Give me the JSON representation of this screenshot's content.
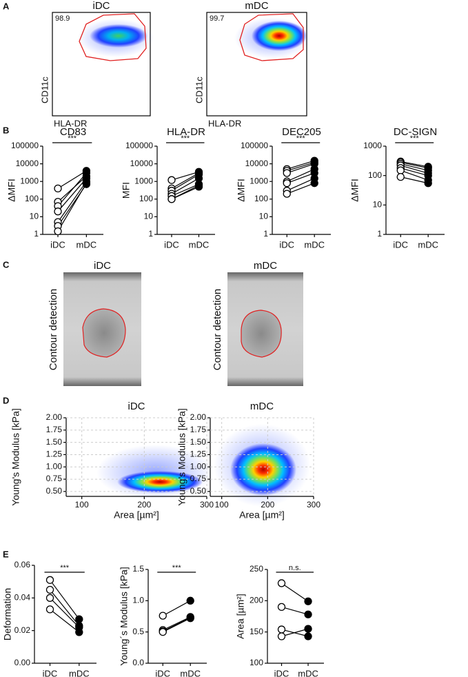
{
  "panels": [
    "A",
    "B",
    "C",
    "D",
    "E"
  ],
  "flow_plots": [
    {
      "title": "iDC",
      "gate": 98.9,
      "xlabel": "HLA-DR",
      "ylabel": "CD11c"
    },
    {
      "title": "mDC",
      "gate": 99.7,
      "xlabel": "HLA-DR",
      "ylabel": "CD11c"
    }
  ],
  "images": [
    {
      "title": "iDC",
      "label": "Contour detection"
    },
    {
      "title": "mDC",
      "label": "Contour detection"
    }
  ],
  "chart_data": [
    {
      "type": "paired",
      "title": "CD83",
      "ylabel": "ΔMFI",
      "log_y": true,
      "categories": [
        "iDC",
        "mDC"
      ],
      "colors": [
        "#ffffff",
        "#000000"
      ],
      "significance": "***",
      "ylim": [
        1,
        100000
      ],
      "yticks": [
        1,
        10,
        100,
        1000,
        10000,
        100000
      ],
      "series": [
        {
          "values": [
            400,
            4000
          ]
        },
        {
          "values": [
            70,
            2000
          ]
        },
        {
          "values": [
            40,
            3000
          ]
        },
        {
          "values": [
            20,
            1500
          ]
        },
        {
          "values": [
            5,
            1000
          ]
        },
        {
          "values": [
            3,
            700
          ]
        },
        {
          "values": [
            1.5,
            800
          ]
        }
      ]
    },
    {
      "type": "paired",
      "title": "HLA-DR",
      "ylabel": "MFI",
      "log_y": true,
      "categories": [
        "iDC",
        "mDC"
      ],
      "colors": [
        "#ffffff",
        "#000000"
      ],
      "significance": "***",
      "ylim": [
        1,
        100000
      ],
      "yticks": [
        1,
        10,
        100,
        1000,
        10000,
        100000
      ],
      "series": [
        {
          "values": [
            1200,
            3500
          ]
        },
        {
          "values": [
            400,
            3000
          ]
        },
        {
          "values": [
            300,
            2500
          ]
        },
        {
          "values": [
            200,
            1500
          ]
        },
        {
          "values": [
            150,
            700
          ]
        },
        {
          "values": [
            100,
            600
          ]
        },
        {
          "values": [
            100,
            500
          ]
        }
      ]
    },
    {
      "type": "paired",
      "title": "DEC205",
      "ylabel": "ΔMFI",
      "log_y": true,
      "categories": [
        "iDC",
        "mDC"
      ],
      "colors": [
        "#ffffff",
        "#000000"
      ],
      "significance": "***",
      "ylim": [
        1,
        100000
      ],
      "yticks": [
        1,
        10,
        100,
        1000,
        10000,
        100000
      ],
      "series": [
        {
          "values": [
            5000,
            15000
          ]
        },
        {
          "values": [
            4000,
            12000
          ]
        },
        {
          "values": [
            3000,
            10000
          ]
        },
        {
          "values": [
            1000,
            5000
          ]
        },
        {
          "values": [
            800,
            3000
          ]
        },
        {
          "values": [
            300,
            1500
          ]
        },
        {
          "values": [
            200,
            800
          ]
        }
      ]
    },
    {
      "type": "paired",
      "title": "DC-SIGN",
      "ylabel": "ΔMFI",
      "log_y": true,
      "categories": [
        "iDC",
        "mDC"
      ],
      "colors": [
        "#ffffff",
        "#000000"
      ],
      "significance": "***",
      "ylim": [
        1,
        1000
      ],
      "yticks": [
        1,
        10,
        100,
        1000
      ],
      "series": [
        {
          "values": [
            300,
            200
          ]
        },
        {
          "values": [
            280,
            180
          ]
        },
        {
          "values": [
            250,
            150
          ]
        },
        {
          "values": [
            220,
            120
          ]
        },
        {
          "values": [
            180,
            100
          ]
        },
        {
          "values": [
            150,
            70
          ]
        },
        {
          "values": [
            90,
            55
          ]
        }
      ]
    },
    {
      "type": "density",
      "title": "iDC",
      "xlabel": "Area [µm²]",
      "ylabel": "Young's Modulus [kPa]",
      "grid": true,
      "xlim": [
        75,
        300
      ],
      "xticks": [
        100,
        200,
        300
      ],
      "ylim": [
        0.4,
        2.0
      ],
      "yticks": [
        {
          "value": 0.5,
          "label": "0.50"
        },
        0.75,
        {
          "value": 1,
          "label": "1.00"
        },
        1.25,
        {
          "value": 1.5,
          "label": "1.50"
        },
        1.75,
        {
          "value": 2,
          "label": "2.00"
        }
      ]
    },
    {
      "type": "density",
      "title": "mDC",
      "xlabel": "Area [µm²]",
      "ylabel": "Young's Modulus [kPa]",
      "grid": true,
      "xlim": [
        75,
        300
      ],
      "xticks": [
        100,
        200,
        300
      ],
      "ylim": [
        0.4,
        2.0
      ],
      "yticks": [
        {
          "value": 0.5,
          "label": "0.50"
        },
        0.75,
        {
          "value": 1,
          "label": "1.00"
        },
        1.25,
        {
          "value": 1.5,
          "label": "1.50"
        },
        1.75,
        {
          "value": 2,
          "label": "2.00"
        }
      ]
    },
    {
      "type": "paired",
      "ylabel": "Deformation",
      "log_y": false,
      "categories": [
        "iDC",
        "mDC"
      ],
      "colors": [
        "#ffffff",
        "#000000"
      ],
      "significance": "***",
      "ylim": [
        0,
        0.06
      ],
      "yticks": [
        {
          "value": 0,
          "label": "0.00"
        },
        0.02,
        0.04,
        0.06
      ],
      "series": [
        {
          "values": [
            0.051,
            0.027
          ]
        },
        {
          "values": [
            0.045,
            0.023
          ]
        },
        {
          "values": [
            0.04,
            0.022
          ]
        },
        {
          "values": [
            0.033,
            0.019
          ]
        }
      ]
    },
    {
      "type": "paired",
      "ylabel": "Young´s Modulus [kPa]",
      "log_y": false,
      "categories": [
        "iDC",
        "mDC"
      ],
      "colors": [
        "#ffffff",
        "#000000"
      ],
      "significance": "***",
      "ylim": [
        0,
        1.5
      ],
      "yticks": [
        {
          "value": 0,
          "label": "0.0"
        },
        0.5,
        {
          "value": 1,
          "label": "1.0"
        },
        1.5
      ],
      "series": [
        {
          "values": [
            0.76,
            1.0
          ]
        },
        {
          "values": [
            0.53,
            0.74
          ]
        },
        {
          "values": [
            0.51,
            0.73
          ]
        },
        {
          "values": [
            0.5,
            0.72
          ]
        }
      ]
    },
    {
      "type": "paired",
      "ylabel": "Area [µm²]",
      "log_y": false,
      "categories": [
        "iDC",
        "mDC"
      ],
      "colors": [
        "#ffffff",
        "#000000"
      ],
      "significance": "n.s.",
      "ylim": [
        100,
        250
      ],
      "yticks": [
        100,
        150,
        200,
        250
      ],
      "series": [
        {
          "values": [
            228,
            199
          ]
        },
        {
          "values": [
            190,
            178
          ]
        },
        {
          "values": [
            154,
            143
          ]
        },
        {
          "values": [
            143,
            155
          ]
        }
      ]
    }
  ]
}
